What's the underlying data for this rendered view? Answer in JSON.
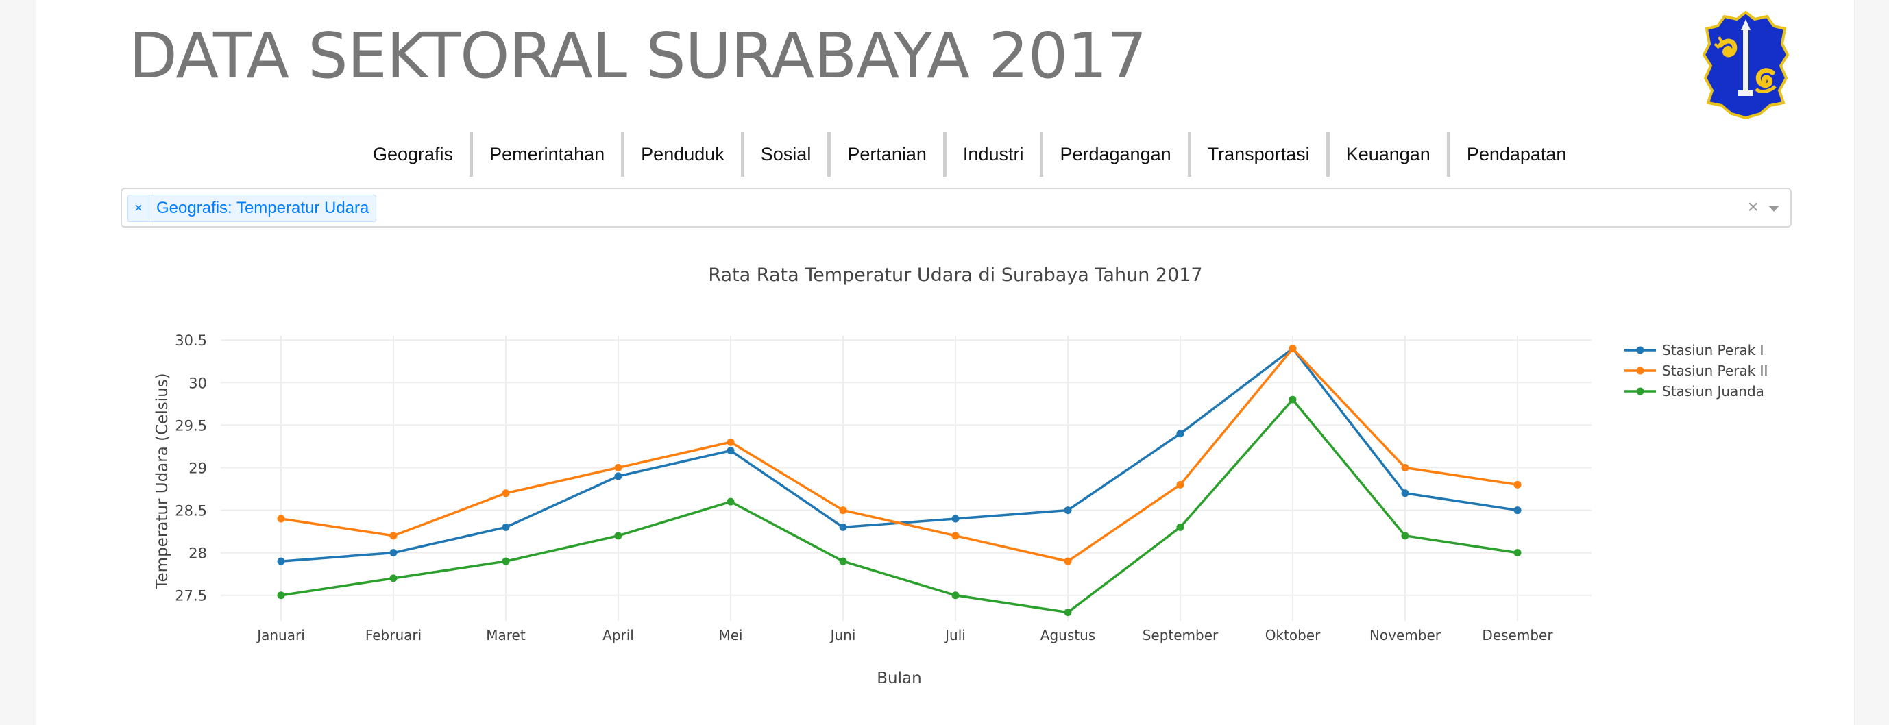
{
  "header": {
    "title": "DATA SEKTORAL SURABAYA 2017",
    "logo_icon": "surabaya-crest-icon"
  },
  "nav": {
    "items": [
      "Geografis",
      "Pemerintahan",
      "Penduduk",
      "Sosial",
      "Pertanian",
      "Industri",
      "Perdagangan",
      "Transportasi",
      "Keuangan",
      "Pendapatan"
    ]
  },
  "selector": {
    "selected_tag": "Geografis: Temperatur Udara",
    "remove_glyph": "×",
    "clear_glyph": "×"
  },
  "chart_data": {
    "type": "line",
    "title": "Rata Rata Temperatur Udara di Surabaya Tahun 2017",
    "xlabel": "Bulan",
    "ylabel": "Temperatur Udara (Celsius)",
    "categories": [
      "Januari",
      "Februari",
      "Maret",
      "April",
      "Mei",
      "Juni",
      "Juli",
      "Agustus",
      "September",
      "Oktober",
      "November",
      "Desember"
    ],
    "ylim": [
      27.2,
      30.55
    ],
    "yticks": [
      27.5,
      28,
      28.5,
      29,
      29.5,
      30,
      30.5
    ],
    "ytick_labels": [
      "27.5",
      "28",
      "28.5",
      "29",
      "29.5",
      "30",
      "30.5"
    ],
    "grid": true,
    "legend_position": "top-right",
    "series": [
      {
        "name": "Stasiun Perak I",
        "color": "#1f77b4",
        "values": [
          27.9,
          28.0,
          28.3,
          28.9,
          29.2,
          28.3,
          28.4,
          28.5,
          29.4,
          30.4,
          28.7,
          28.5
        ]
      },
      {
        "name": "Stasiun Perak II",
        "color": "#ff7f0e",
        "values": [
          28.4,
          28.2,
          28.7,
          29.0,
          29.3,
          28.5,
          28.2,
          27.9,
          28.8,
          30.4,
          29.0,
          28.8
        ]
      },
      {
        "name": "Stasiun Juanda",
        "color": "#2ca02c",
        "values": [
          27.5,
          27.7,
          27.9,
          28.2,
          28.6,
          27.9,
          27.5,
          27.3,
          28.3,
          29.8,
          28.2,
          28.0
        ]
      }
    ]
  }
}
